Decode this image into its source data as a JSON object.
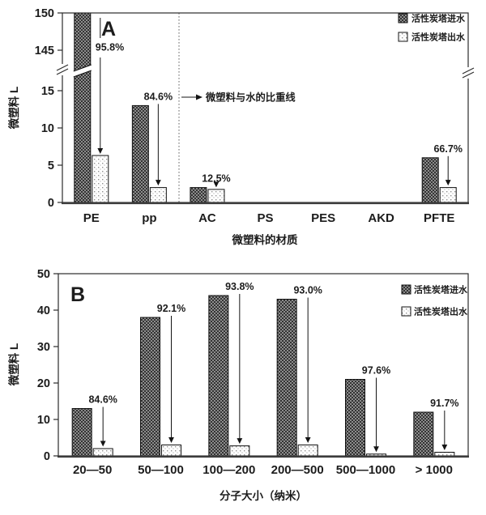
{
  "figure_title": "",
  "colors": {
    "axis": "#2b2b2b",
    "bar_in_dark": "#333333",
    "bar_in_mid": "#8d8d8d",
    "bar_out_bg": "#ffffff",
    "bar_out_dot": "#8f8f8f",
    "annotation_line": "#666666",
    "text": "#1c1c1c"
  },
  "chart_data": [
    {
      "id": "A",
      "type": "bar",
      "panel_label": "A",
      "xlabel": "微塑料的材质",
      "ylabel": "微塑料  L",
      "categories": [
        "PE",
        "pp",
        "AC",
        "PS",
        "PES",
        "AKD",
        "PFTE"
      ],
      "series": [
        {
          "name": "活性炭塔进水",
          "values": [
            150,
            13,
            2,
            0,
            0,
            0,
            6
          ]
        },
        {
          "name": "活性炭塔出水",
          "values": [
            6.3,
            2,
            1.75,
            0,
            0,
            0,
            2
          ]
        }
      ],
      "removal_labels": [
        "95.8%",
        "84.6%",
        "12.5%",
        "",
        "",
        "",
        "66.7%"
      ],
      "yticks": [
        0,
        5,
        10,
        15,
        145,
        150
      ],
      "axis_break": {
        "enabled": true,
        "lower_range": [
          0,
          15
        ],
        "upper_range": [
          145,
          150
        ]
      },
      "annotation": {
        "text": "微塑料与水的比重线",
        "position": "dotted vertical line between pp and AC"
      },
      "legend": [
        "活性炭塔进水",
        "活性炭塔出水"
      ],
      "legend_position": "top-right",
      "grid": false
    },
    {
      "id": "B",
      "type": "bar",
      "panel_label": "B",
      "xlabel": "分子大小（纳米）",
      "ylabel": "微塑料  L",
      "categories": [
        "20—50",
        "50—100",
        "100—200",
        "200—500",
        "500—1000",
        "> 1000"
      ],
      "series": [
        {
          "name": "活性炭塔进水",
          "values": [
            13,
            38,
            44,
            43,
            21,
            12
          ]
        },
        {
          "name": "活性炭塔出水",
          "values": [
            2,
            3,
            2.75,
            3,
            0.5,
            1
          ]
        }
      ],
      "removal_labels": [
        "84.6%",
        "92.1%",
        "93.8%",
        "93.0%",
        "97.6%",
        "91.7%"
      ],
      "yticks": [
        0,
        10,
        20,
        30,
        40,
        50
      ],
      "ylim": [
        0,
        50
      ],
      "legend": [
        "活性炭塔进水",
        "活性炭塔出水"
      ],
      "legend_position": "top-right",
      "grid": false
    }
  ]
}
